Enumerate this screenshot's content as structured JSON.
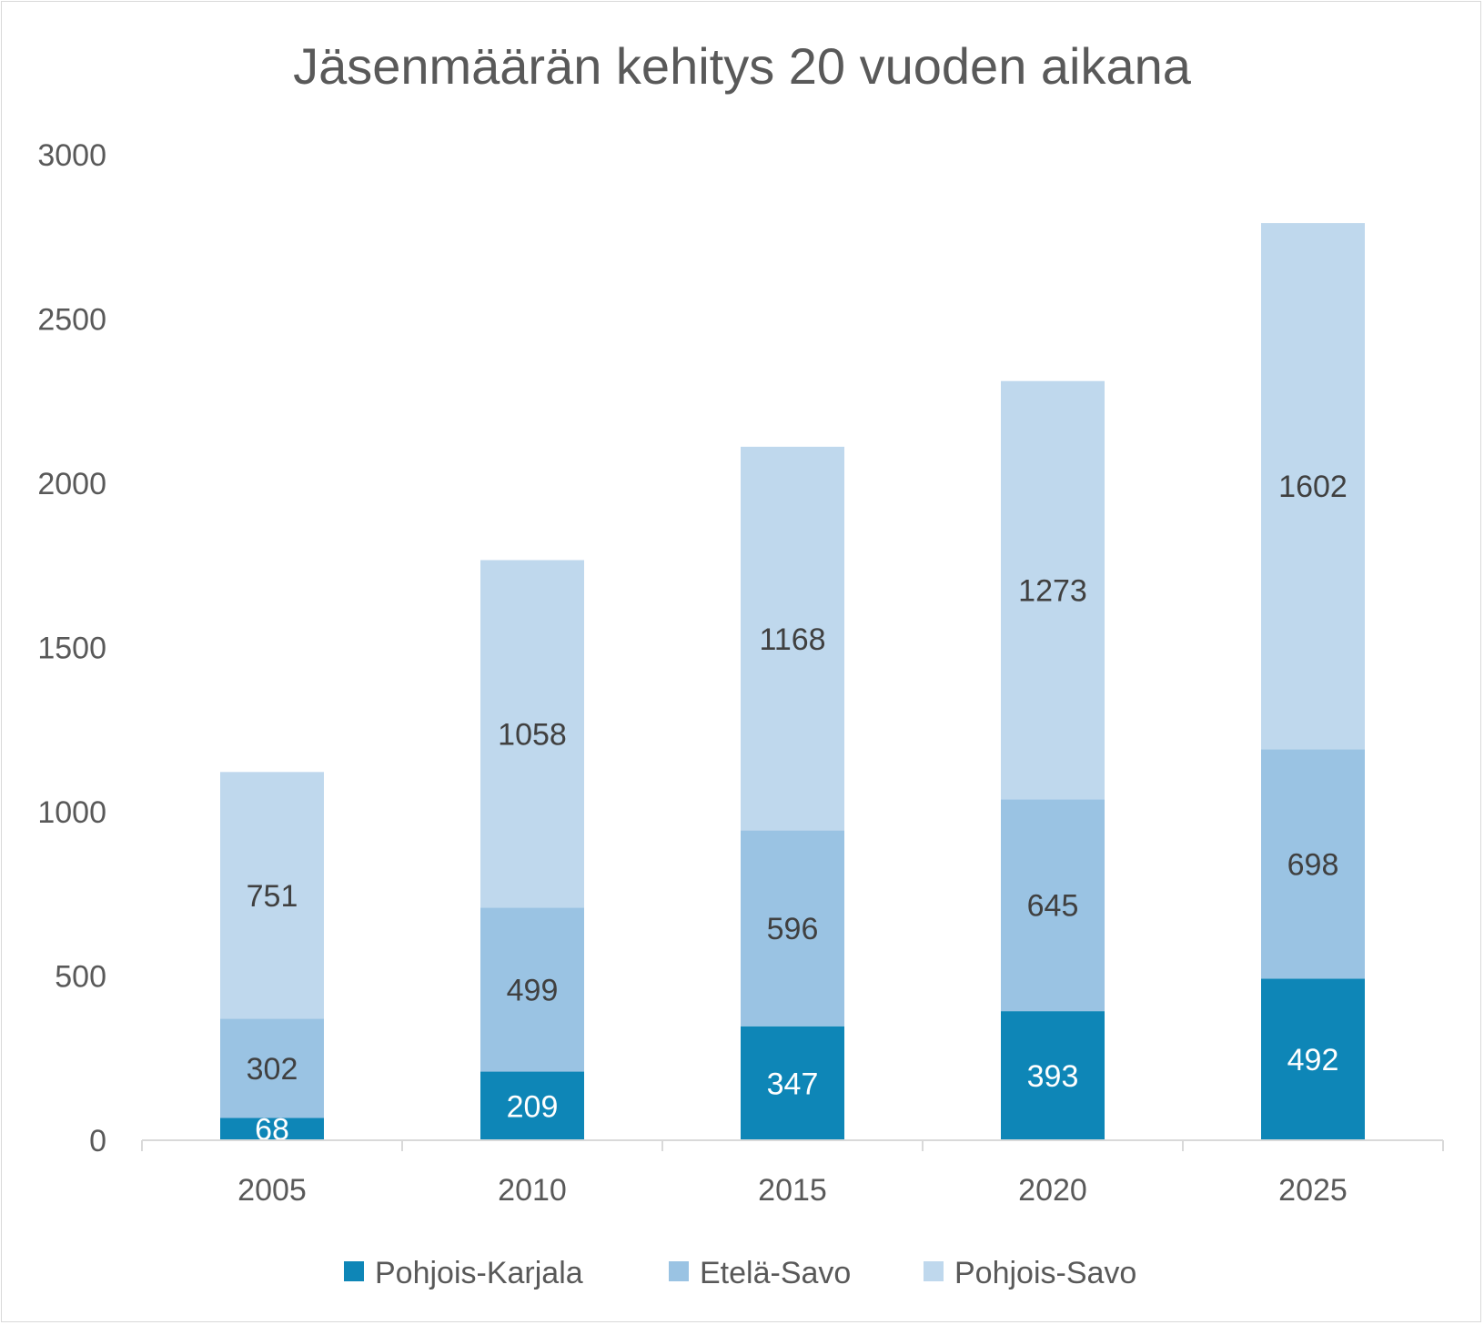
{
  "chart_data": {
    "type": "bar",
    "stacked": true,
    "title": "Jäsenmäärän kehitys 20 vuoden aikana",
    "xlabel": "",
    "ylabel": "",
    "categories": [
      "2005",
      "2010",
      "2015",
      "2020",
      "2025"
    ],
    "ylim": [
      0,
      3000
    ],
    "yticks": [
      "0",
      "500",
      "1000",
      "1500",
      "2000",
      "2500",
      "3000"
    ],
    "gridlines": false,
    "legend_position": "bottom",
    "series": [
      {
        "name": "Pohjois-Karjala",
        "color": "#0e86b7",
        "label_color": "#ffffff",
        "values": [
          68,
          209,
          347,
          393,
          492
        ]
      },
      {
        "name": "Etelä-Savo",
        "color": "#9ac3e3",
        "label_color": "#404040",
        "values": [
          302,
          499,
          596,
          645,
          698
        ]
      },
      {
        "name": "Pohjois-Savo",
        "color": "#bfd8ed",
        "label_color": "#404040",
        "values": [
          751,
          1058,
          1168,
          1273,
          1602
        ]
      }
    ]
  }
}
